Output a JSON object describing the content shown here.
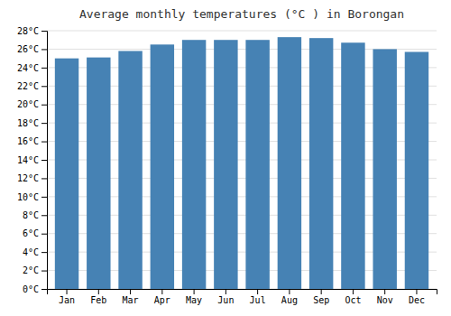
{
  "chart_data": {
    "type": "bar",
    "title": "Average monthly temperatures (°C ) in Borongan",
    "categories": [
      "Jan",
      "Feb",
      "Mar",
      "Apr",
      "May",
      "Jun",
      "Jul",
      "Aug",
      "Sep",
      "Oct",
      "Nov",
      "Dec"
    ],
    "values": [
      25.0,
      25.1,
      25.8,
      26.5,
      27.0,
      27.0,
      27.0,
      27.3,
      27.2,
      26.7,
      26.0,
      25.7
    ],
    "ylim": [
      0,
      28
    ],
    "yticks": [
      {
        "value": 0,
        "label": "0°C"
      },
      {
        "value": 2,
        "label": "2°C"
      },
      {
        "value": 4,
        "label": "4°C"
      },
      {
        "value": 6,
        "label": "6°C"
      },
      {
        "value": 8,
        "label": "8°C"
      },
      {
        "value": 10,
        "label": "10°C"
      },
      {
        "value": 12,
        "label": "12°C"
      },
      {
        "value": 14,
        "label": "14°C"
      },
      {
        "value": 16,
        "label": "16°C"
      },
      {
        "value": 18,
        "label": "18°C"
      },
      {
        "value": 20,
        "label": "20°C"
      },
      {
        "value": 22,
        "label": "22°C"
      },
      {
        "value": 24,
        "label": "24°C"
      },
      {
        "value": 26,
        "label": "26°C"
      },
      {
        "value": 28,
        "label": "28°C"
      }
    ],
    "grid": true
  }
}
